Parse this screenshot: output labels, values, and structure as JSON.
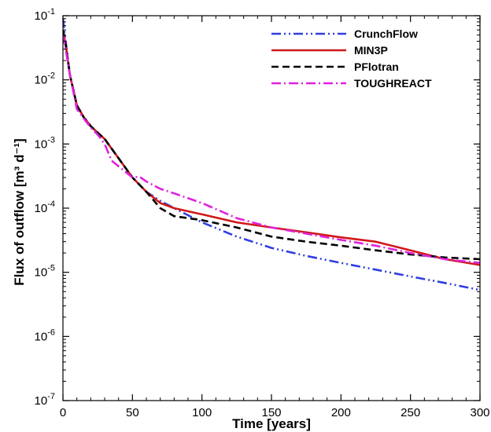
{
  "chart_data": {
    "type": "line",
    "xlabel": "Time [years]",
    "ylabel": "Flux of outflow [m³ d⁻¹]",
    "xlim": [
      0,
      300
    ],
    "ylim": [
      1e-07,
      0.1
    ],
    "yscale": "log",
    "x_ticks": [
      0,
      50,
      100,
      150,
      200,
      250,
      300
    ],
    "y_ticks": [
      {
        "value": 1e-07,
        "base": "10",
        "exp": "-7"
      },
      {
        "value": 1e-06,
        "base": "10",
        "exp": "-6"
      },
      {
        "value": 1e-05,
        "base": "10",
        "exp": "-5"
      },
      {
        "value": 0.0001,
        "base": "10",
        "exp": "-4"
      },
      {
        "value": 0.001,
        "base": "10",
        "exp": "-3"
      },
      {
        "value": 0.01,
        "base": "10",
        "exp": "-2"
      },
      {
        "value": 0.1,
        "base": "10",
        "exp": "-1"
      }
    ],
    "grid": false,
    "legend_position": "top-right",
    "series": [
      {
        "name": "CrunchFlow",
        "color": "#2f3fe0",
        "dash": "12,4,2,4,2,4",
        "x": [
          0,
          2,
          5,
          10,
          15,
          20,
          25,
          30,
          40,
          50,
          60,
          70,
          80,
          100,
          125,
          150,
          175,
          200,
          225,
          250,
          275,
          300
        ],
        "y": [
          0.09,
          0.04,
          0.012,
          0.004,
          0.0026,
          0.0019,
          0.0015,
          0.0012,
          0.0006,
          0.0003,
          0.00018,
          0.00013,
          0.0001,
          6e-05,
          3.6e-05,
          2.4e-05,
          1.8e-05,
          1.4e-05,
          1.1e-05,
          8.6e-06,
          6.8e-06,
          5.3e-06
        ]
      },
      {
        "name": "MIN3P",
        "color": "#d01818",
        "dash": "",
        "x": [
          0,
          2,
          5,
          10,
          15,
          20,
          25,
          30,
          40,
          50,
          60,
          70,
          80,
          100,
          125,
          150,
          175,
          200,
          225,
          250,
          275,
          300
        ],
        "y": [
          0.06,
          0.035,
          0.012,
          0.004,
          0.0026,
          0.0019,
          0.0015,
          0.0012,
          0.0006,
          0.0003,
          0.00018,
          0.00012,
          0.0001,
          8e-05,
          6e-05,
          5e-05,
          4.2e-05,
          3.5e-05,
          3e-05,
          2.2e-05,
          1.6e-05,
          1.3e-05
        ]
      },
      {
        "name": "PFlotran",
        "color": "#000000",
        "dash": "9,5",
        "x": [
          0,
          2,
          5,
          10,
          15,
          20,
          25,
          30,
          40,
          50,
          60,
          70,
          80,
          100,
          125,
          150,
          175,
          200,
          225,
          250,
          275,
          300
        ],
        "y": [
          0.06,
          0.035,
          0.012,
          0.004,
          0.0026,
          0.0019,
          0.0015,
          0.0012,
          0.0006,
          0.0003,
          0.00018,
          0.0001,
          7.5e-05,
          6.5e-05,
          5e-05,
          3.6e-05,
          3e-05,
          2.6e-05,
          2.2e-05,
          1.9e-05,
          1.7e-05,
          1.6e-05
        ]
      },
      {
        "name": "TOUGHREACT",
        "color": "#e020e0",
        "dash": "12,4,2,4",
        "x": [
          0,
          2,
          5,
          10,
          15,
          20,
          25,
          30,
          35,
          40,
          50,
          55,
          60,
          70,
          80,
          100,
          125,
          150,
          175,
          200,
          225,
          250,
          275,
          300
        ],
        "y": [
          0.05,
          0.03,
          0.012,
          0.0035,
          0.0025,
          0.0018,
          0.0014,
          0.001,
          0.00055,
          0.00045,
          0.0003,
          0.00031,
          0.00026,
          0.0002,
          0.00017,
          0.00012,
          7e-05,
          5e-05,
          4e-05,
          3.2e-05,
          2.6e-05,
          2e-05,
          1.6e-05,
          1.4e-05
        ]
      }
    ]
  }
}
